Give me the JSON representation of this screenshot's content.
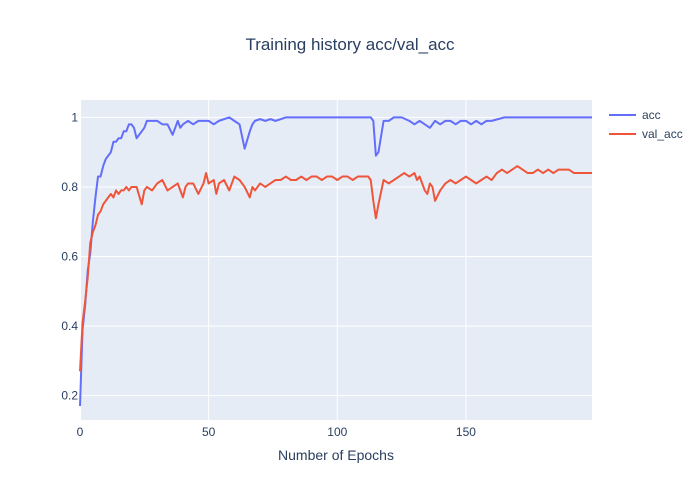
{
  "chart_data": {
    "type": "line",
    "title": "Training history acc/val_acc",
    "xlabel": "Number of Epochs",
    "ylabel": "",
    "xlim": [
      0,
      199
    ],
    "ylim": [
      0.13,
      1.05
    ],
    "xticks": [
      0,
      50,
      100,
      150
    ],
    "yticks": [
      0.2,
      0.4,
      0.6,
      0.8,
      1
    ],
    "ytick_labels": [
      "0.2",
      "0.4",
      "0.6",
      "0.8",
      "1"
    ],
    "xtick_labels": [
      "0",
      "50",
      "100",
      "150"
    ],
    "grid": true,
    "legend_position": "top-right",
    "series": [
      {
        "name": "acc",
        "color": "#636efa",
        "x": [
          0,
          1,
          2,
          3,
          4,
          5,
          6,
          7,
          8,
          9,
          10,
          11,
          12,
          13,
          14,
          15,
          16,
          17,
          18,
          19,
          20,
          21,
          22,
          23,
          24,
          25,
          26,
          28,
          30,
          32,
          34,
          36,
          37,
          38,
          39,
          40,
          42,
          44,
          46,
          48,
          50,
          52,
          54,
          56,
          58,
          60,
          62,
          64,
          66,
          67,
          68,
          70,
          72,
          74,
          76,
          80,
          85,
          90,
          95,
          100,
          105,
          110,
          113,
          114,
          115,
          116,
          118,
          120,
          122,
          125,
          128,
          130,
          132,
          134,
          136,
          138,
          140,
          142,
          144,
          146,
          148,
          150,
          152,
          154,
          156,
          158,
          160,
          165,
          170,
          175,
          180,
          185,
          190,
          195,
          199
        ],
        "y": [
          0.17,
          0.39,
          0.46,
          0.56,
          0.61,
          0.7,
          0.77,
          0.83,
          0.83,
          0.86,
          0.88,
          0.89,
          0.9,
          0.93,
          0.93,
          0.94,
          0.94,
          0.96,
          0.96,
          0.98,
          0.98,
          0.97,
          0.94,
          0.95,
          0.96,
          0.97,
          0.99,
          0.99,
          0.99,
          0.98,
          0.98,
          0.95,
          0.97,
          0.99,
          0.97,
          0.98,
          0.99,
          0.98,
          0.99,
          0.99,
          0.99,
          0.98,
          0.99,
          0.995,
          1.0,
          0.99,
          0.98,
          0.91,
          0.96,
          0.98,
          0.99,
          0.995,
          0.99,
          0.995,
          0.99,
          1.0,
          1.0,
          1.0,
          1.0,
          1.0,
          1.0,
          1.0,
          1.0,
          0.99,
          0.89,
          0.9,
          0.99,
          0.99,
          1.0,
          1.0,
          0.99,
          0.98,
          0.99,
          0.98,
          0.97,
          0.99,
          0.98,
          0.99,
          0.99,
          0.98,
          0.99,
          0.99,
          0.98,
          0.99,
          0.98,
          0.99,
          0.99,
          1.0,
          1.0,
          1.0,
          1.0,
          1.0,
          1.0,
          1.0,
          1.0
        ]
      },
      {
        "name": "val_acc",
        "color": "#ef553b",
        "x": [
          0,
          1,
          2,
          3,
          4,
          5,
          6,
          7,
          8,
          9,
          10,
          11,
          12,
          13,
          14,
          15,
          16,
          17,
          18,
          19,
          20,
          22,
          24,
          25,
          26,
          28,
          30,
          32,
          34,
          36,
          38,
          40,
          41,
          42,
          44,
          46,
          48,
          49,
          50,
          52,
          53,
          54,
          56,
          58,
          60,
          62,
          64,
          66,
          67,
          68,
          70,
          72,
          74,
          76,
          78,
          80,
          82,
          84,
          86,
          88,
          90,
          92,
          94,
          96,
          98,
          100,
          102,
          104,
          106,
          108,
          110,
          112,
          113,
          114,
          115,
          116,
          118,
          120,
          122,
          124,
          126,
          128,
          130,
          131,
          132,
          134,
          135,
          136,
          137,
          138,
          140,
          142,
          144,
          146,
          148,
          150,
          152,
          154,
          156,
          158,
          160,
          162,
          164,
          166,
          168,
          170,
          172,
          174,
          176,
          178,
          180,
          182,
          184,
          186,
          188,
          190,
          192,
          194,
          196,
          199
        ],
        "y": [
          0.27,
          0.41,
          0.47,
          0.54,
          0.64,
          0.67,
          0.69,
          0.72,
          0.73,
          0.75,
          0.76,
          0.77,
          0.78,
          0.77,
          0.79,
          0.78,
          0.79,
          0.79,
          0.8,
          0.79,
          0.8,
          0.8,
          0.75,
          0.79,
          0.8,
          0.79,
          0.81,
          0.82,
          0.79,
          0.8,
          0.81,
          0.77,
          0.8,
          0.81,
          0.81,
          0.78,
          0.81,
          0.84,
          0.81,
          0.82,
          0.78,
          0.81,
          0.82,
          0.79,
          0.83,
          0.82,
          0.8,
          0.77,
          0.8,
          0.79,
          0.81,
          0.8,
          0.81,
          0.82,
          0.82,
          0.83,
          0.82,
          0.82,
          0.83,
          0.82,
          0.83,
          0.83,
          0.82,
          0.83,
          0.83,
          0.82,
          0.83,
          0.83,
          0.82,
          0.83,
          0.83,
          0.83,
          0.82,
          0.76,
          0.71,
          0.75,
          0.82,
          0.81,
          0.82,
          0.83,
          0.84,
          0.83,
          0.84,
          0.82,
          0.83,
          0.79,
          0.78,
          0.81,
          0.8,
          0.76,
          0.79,
          0.81,
          0.82,
          0.81,
          0.82,
          0.83,
          0.82,
          0.81,
          0.82,
          0.83,
          0.82,
          0.84,
          0.85,
          0.84,
          0.85,
          0.86,
          0.85,
          0.84,
          0.84,
          0.85,
          0.84,
          0.85,
          0.84,
          0.85,
          0.85,
          0.85,
          0.84,
          0.84,
          0.84,
          0.84
        ]
      }
    ]
  }
}
